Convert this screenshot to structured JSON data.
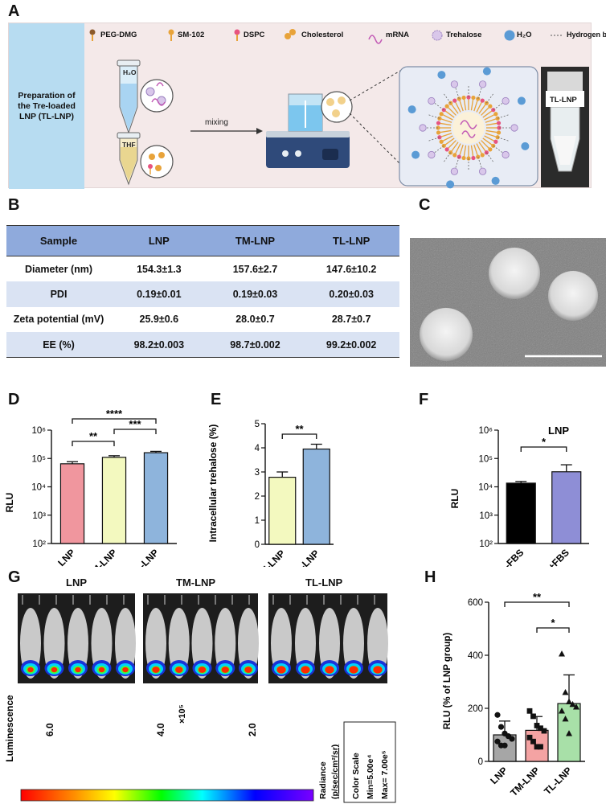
{
  "panels": {
    "A": "A",
    "B": "B",
    "C": "C",
    "D": "D",
    "E": "E",
    "F": "F",
    "G": "G",
    "H": "H"
  },
  "panelA": {
    "prep_title": "Preparation of the Tre-loaded LNP (TL-LNP)",
    "legend": [
      "PEG-DMG",
      "SM-102",
      "DSPC",
      "Cholesterol",
      "mRNA",
      "Trehalose",
      "H₂O",
      "Hydrogen bond"
    ],
    "tube1_label": "H₂O",
    "tube2_label": "THF",
    "mixing_label": "mixing",
    "vial_label": "TL-LNP",
    "colors": {
      "background": "#f4e9e9",
      "prep_box": "#b7dcf1",
      "lipid_tail": "#e8a33a",
      "head": "#b9a0cf",
      "water": "#5b9bd5"
    }
  },
  "tableB": {
    "headers": [
      "Sample",
      "LNP",
      "TM-LNP",
      "TL-LNP"
    ],
    "rows": [
      [
        "Diameter (nm)",
        "154.3±1.3",
        "157.6±2.7",
        "147.6±10.2"
      ],
      [
        "PDI",
        "0.19±0.01",
        "0.19±0.03",
        "0.20±0.03"
      ],
      [
        "Zeta potential (mV)",
        "25.9±0.6",
        "28.0±0.7",
        "28.7±0.7"
      ],
      [
        "EE (%)",
        "98.2±0.003",
        "98.7±0.002",
        "99.2±0.002"
      ]
    ],
    "header_color": "#8faadc",
    "shade_color": "#dae3f3"
  },
  "chart_data": [
    {
      "panel": "D",
      "type": "bar",
      "categories": [
        "LNP",
        "TM-LNP",
        "TL-LNP"
      ],
      "values": [
        65000,
        110000,
        160000
      ],
      "errors": [
        12000,
        15000,
        18000
      ],
      "ylabel": "RLU",
      "yscale": "log",
      "ylim": [
        100,
        1000000
      ],
      "yticks": [
        "10²",
        "10³",
        "10⁴",
        "10⁵",
        "10⁶"
      ],
      "colors": [
        "#f0969e",
        "#f3f9bf",
        "#8eb4dc"
      ],
      "significance": [
        "****",
        "***",
        "**"
      ]
    },
    {
      "panel": "E",
      "type": "bar",
      "categories": [
        "TM-LNP",
        "TL-LNP"
      ],
      "values": [
        2.78,
        3.95
      ],
      "errors": [
        0.22,
        0.2
      ],
      "ylabel": "Intracellular trehalose (%)",
      "ylim": [
        0,
        5
      ],
      "yticks": [
        "0",
        "1",
        "2",
        "3",
        "4",
        "5"
      ],
      "colors": [
        "#f3f9bf",
        "#8eb4dc"
      ],
      "significance": [
        "**"
      ]
    },
    {
      "panel": "F",
      "type": "bar",
      "title": "LNP",
      "categories": [
        "-FBS",
        "+FBS"
      ],
      "values": [
        13500,
        34000
      ],
      "errors": [
        2000,
        26000
      ],
      "ylabel": "RLU",
      "yscale": "log",
      "ylim": [
        100,
        1000000
      ],
      "yticks": [
        "10²",
        "10³",
        "10⁴",
        "10⁵",
        "10⁶"
      ],
      "colors": [
        "#000000",
        "#8e8ed6"
      ],
      "significance": [
        "*"
      ]
    },
    {
      "panel": "H",
      "type": "bar",
      "categories": [
        "LNP",
        "TM-LNP",
        "TL-LNP"
      ],
      "values": [
        100,
        117,
        218
      ],
      "errors": [
        52,
        52,
        108
      ],
      "points": [
        [
          175,
          130,
          105,
          95,
          85,
          75,
          60,
          60
        ],
        [
          190,
          170,
          135,
          125,
          115,
          90,
          75,
          55,
          55
        ],
        [
          405,
          260,
          225,
          215,
          205,
          190,
          160,
          105
        ]
      ],
      "markers": [
        "circle",
        "square",
        "triangle"
      ],
      "ylabel": "RLU (% of LNP group)",
      "ylim": [
        0,
        600
      ],
      "yticks": [
        "0",
        "200",
        "400",
        "600"
      ],
      "colors": [
        "#a6a6a6",
        "#f4a3a3",
        "#a8e0a8"
      ],
      "significance": [
        "**",
        "*"
      ]
    }
  ],
  "panelG": {
    "groups": [
      "LNP",
      "TM-LNP",
      "TL-LNP"
    ],
    "colorbar_title": "Luminescence",
    "colorbar_ticks": [
      "6.0",
      "4.0",
      "2.0"
    ],
    "colorbar_exponent": "×10⁵",
    "radiance_line1": "Radiance",
    "radiance_line2": "(p/sec/cm²/sr)",
    "scale_line1": "Color Scale",
    "scale_line2": "Min=5.00e⁴",
    "scale_line3": "Max= 7.00e⁵"
  }
}
